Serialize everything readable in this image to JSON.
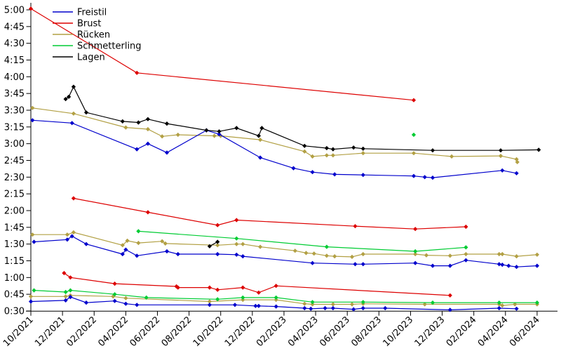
{
  "chart_data": {
    "type": "line",
    "title": "",
    "xlabel": "",
    "ylabel": "",
    "grid": false,
    "legend_position": "top-left",
    "marker": "diamond",
    "y_axis": {
      "unit": "min:sec",
      "range_seconds": [
        30,
        300
      ],
      "ticks": [
        {
          "s": 30,
          "label": "0:30"
        },
        {
          "s": 45,
          "label": "0:45"
        },
        {
          "s": 60,
          "label": "1:00"
        },
        {
          "s": 75,
          "label": "1:15"
        },
        {
          "s": 90,
          "label": "1:30"
        },
        {
          "s": 105,
          "label": "1:45"
        },
        {
          "s": 120,
          "label": "2:00"
        },
        {
          "s": 135,
          "label": "2:15"
        },
        {
          "s": 150,
          "label": "2:30"
        },
        {
          "s": 165,
          "label": "2:45"
        },
        {
          "s": 180,
          "label": "3:00"
        },
        {
          "s": 195,
          "label": "3:15"
        },
        {
          "s": 210,
          "label": "3:30"
        },
        {
          "s": 225,
          "label": "3:45"
        },
        {
          "s": 240,
          "label": "4:00"
        },
        {
          "s": 255,
          "label": "4:15"
        },
        {
          "s": 270,
          "label": "4:30"
        },
        {
          "s": 285,
          "label": "4:45"
        },
        {
          "s": 300,
          "label": "5:00"
        }
      ]
    },
    "x_axis": {
      "unit": "month/year",
      "range_months": [
        -0.3,
        33.3
      ],
      "ticks": [
        {
          "m": 0,
          "label": "10/2021"
        },
        {
          "m": 2,
          "label": "12/2021"
        },
        {
          "m": 4,
          "label": "02/2022"
        },
        {
          "m": 6,
          "label": "04/2022"
        },
        {
          "m": 8,
          "label": "06/2022"
        },
        {
          "m": 10,
          "label": "08/2022"
        },
        {
          "m": 12,
          "label": "10/2022"
        },
        {
          "m": 14,
          "label": "12/2022"
        },
        {
          "m": 16,
          "label": "02/2023"
        },
        {
          "m": 18,
          "label": "04/2023"
        },
        {
          "m": 20,
          "label": "06/2023"
        },
        {
          "m": 22,
          "label": "08/2023"
        },
        {
          "m": 24,
          "label": "10/2023"
        },
        {
          "m": 26,
          "label": "12/2023"
        },
        {
          "m": 28,
          "label": "02/2024"
        },
        {
          "m": 30,
          "label": "04/2024"
        },
        {
          "m": 32,
          "label": "06/2024"
        }
      ]
    },
    "legend": [
      {
        "label": "Freistil",
        "color": "#0000cc"
      },
      {
        "label": "Brust",
        "color": "#dd0000"
      },
      {
        "label": "Rücken",
        "color": "#b2a044"
      },
      {
        "label": "Schmetterling",
        "color": "#00cc33"
      },
      {
        "label": "Lagen",
        "color": "#000000"
      }
    ],
    "series": [
      {
        "id": "ruecken-long",
        "stroke": "Rücken",
        "band": "long",
        "color": "#b2a044",
        "points": [
          [
            0.1,
            212
          ],
          [
            2.7,
            207
          ],
          [
            6.0,
            194.5
          ],
          [
            7.4,
            193
          ],
          [
            8.3,
            186.5
          ],
          [
            9.3,
            188
          ],
          [
            11.6,
            187
          ],
          [
            12.0,
            187
          ],
          [
            14.5,
            183.5
          ],
          [
            17.3,
            173
          ],
          [
            17.8,
            168.5
          ],
          [
            18.7,
            169.5
          ],
          [
            19.1,
            169.5
          ],
          [
            21.0,
            171.5
          ],
          [
            24.2,
            171.5
          ],
          [
            26.6,
            168.5
          ],
          [
            29.7,
            169
          ],
          [
            30.7,
            166
          ],
          [
            30.75,
            163.5
          ]
        ]
      },
      {
        "id": "ruecken-mid",
        "stroke": "Rücken",
        "band": "mid",
        "color": "#b2a044",
        "points": [
          [
            0.1,
            98.5
          ],
          [
            2.3,
            98.5
          ],
          [
            2.7,
            100.5
          ],
          [
            5.8,
            89
          ],
          [
            6.1,
            93
          ],
          [
            6.8,
            91
          ],
          [
            8.3,
            92.5
          ],
          [
            8.5,
            90.5
          ],
          [
            11.8,
            89
          ],
          [
            13.0,
            90
          ],
          [
            13.4,
            90
          ],
          [
            14.5,
            87.5
          ],
          [
            16.7,
            84
          ],
          [
            17.4,
            82
          ],
          [
            17.9,
            81.5
          ],
          [
            18.7,
            79.5
          ],
          [
            19.2,
            79
          ],
          [
            20.3,
            78.5
          ],
          [
            21.0,
            81
          ],
          [
            24.3,
            81
          ],
          [
            25.0,
            80
          ],
          [
            26.5,
            79.5
          ],
          [
            27.5,
            81
          ],
          [
            29.6,
            81
          ],
          [
            29.8,
            81
          ],
          [
            30.7,
            79
          ],
          [
            32.0,
            80.5
          ]
        ]
      },
      {
        "id": "ruecken-short",
        "stroke": "Rücken",
        "band": "short",
        "color": "#b2a044",
        "points": [
          [
            0.0,
            43
          ],
          [
            2.2,
            43
          ],
          [
            2.5,
            44
          ],
          [
            5.2,
            43
          ],
          [
            6.0,
            41.5
          ],
          [
            11.3,
            38.5
          ],
          [
            13.4,
            40
          ],
          [
            15.5,
            40
          ],
          [
            17.3,
            36.5
          ],
          [
            17.8,
            36
          ],
          [
            19.1,
            36
          ],
          [
            20.3,
            36
          ],
          [
            21.0,
            36.5
          ],
          [
            24.9,
            36
          ],
          [
            29.6,
            36
          ],
          [
            29.8,
            35
          ],
          [
            30.6,
            36
          ],
          [
            32.0,
            36
          ]
        ]
      },
      {
        "id": "schmetterling-long",
        "stroke": "Schmetterling",
        "band": "long",
        "color": "#00cc33",
        "points": [
          [
            24.2,
            188
          ]
        ]
      },
      {
        "id": "schmetterling-mid",
        "stroke": "Schmetterling",
        "band": "mid",
        "color": "#00cc33",
        "points": [
          [
            6.8,
            101.5
          ],
          [
            13.0,
            95
          ],
          [
            18.7,
            87.5
          ],
          [
            24.3,
            83.5
          ],
          [
            27.5,
            87
          ]
        ]
      },
      {
        "id": "schmetterling-short",
        "stroke": "Schmetterling",
        "band": "short",
        "color": "#00cc33",
        "points": [
          [
            0.2,
            48.5
          ],
          [
            2.2,
            47
          ],
          [
            2.5,
            48.5
          ],
          [
            5.3,
            45
          ],
          [
            7.3,
            42
          ],
          [
            11.8,
            40.5
          ],
          [
            13.4,
            42
          ],
          [
            15.5,
            42
          ],
          [
            17.8,
            38
          ],
          [
            21.0,
            38
          ],
          [
            25.4,
            37.5
          ],
          [
            29.6,
            37.5
          ],
          [
            32.0,
            37.5
          ]
        ]
      },
      {
        "id": "brust-long",
        "stroke": "Brust",
        "band": "long",
        "color": "#dd0000",
        "points": [
          [
            0.0,
            301
          ],
          [
            6.7,
            243.5
          ],
          [
            24.2,
            219
          ]
        ]
      },
      {
        "id": "brust-mid",
        "stroke": "Brust",
        "band": "mid",
        "color": "#dd0000",
        "points": [
          [
            2.7,
            131
          ],
          [
            7.4,
            118.5
          ],
          [
            11.8,
            107
          ],
          [
            13.0,
            111.5
          ],
          [
            20.5,
            106
          ],
          [
            24.3,
            103.5
          ],
          [
            27.5,
            105.5
          ]
        ]
      },
      {
        "id": "brust-short",
        "stroke": "Brust",
        "band": "short",
        "color": "#dd0000",
        "points": [
          [
            2.1,
            64
          ],
          [
            2.5,
            60
          ],
          [
            5.3,
            54.5
          ],
          [
            9.2,
            52
          ],
          [
            9.3,
            51
          ],
          [
            11.3,
            51
          ],
          [
            11.8,
            49
          ],
          [
            13.4,
            51
          ],
          [
            14.4,
            46.5
          ],
          [
            15.5,
            52.5
          ],
          [
            26.5,
            44
          ]
        ]
      },
      {
        "id": "freistil-long",
        "stroke": "Freistil",
        "band": "long",
        "color": "#0000cc",
        "points": [
          [
            0.1,
            201
          ],
          [
            2.6,
            198.5
          ],
          [
            6.7,
            175
          ],
          [
            7.4,
            180
          ],
          [
            8.6,
            172
          ],
          [
            11.1,
            192
          ],
          [
            11.9,
            188.5
          ],
          [
            14.5,
            167.5
          ],
          [
            16.6,
            158
          ],
          [
            17.8,
            154.5
          ],
          [
            19.2,
            152.5
          ],
          [
            21.0,
            152
          ],
          [
            24.2,
            151
          ],
          [
            24.9,
            150
          ],
          [
            25.4,
            149.5
          ],
          [
            29.8,
            156
          ],
          [
            30.7,
            153.5
          ]
        ]
      },
      {
        "id": "freistil-mid",
        "stroke": "Freistil",
        "band": "mid",
        "color": "#0000cc",
        "points": [
          [
            0.2,
            92
          ],
          [
            2.3,
            94
          ],
          [
            2.6,
            97
          ],
          [
            3.5,
            90
          ],
          [
            5.8,
            81
          ],
          [
            6.0,
            85
          ],
          [
            6.7,
            79.5
          ],
          [
            8.6,
            83.5
          ],
          [
            9.3,
            81
          ],
          [
            11.8,
            81
          ],
          [
            13.0,
            80.5
          ],
          [
            13.4,
            79
          ],
          [
            17.8,
            73
          ],
          [
            20.5,
            72
          ],
          [
            21.0,
            72
          ],
          [
            24.3,
            73
          ],
          [
            25.4,
            70.5
          ],
          [
            26.5,
            70.5
          ],
          [
            27.5,
            75.5
          ],
          [
            29.6,
            72
          ],
          [
            29.8,
            71.5
          ],
          [
            30.2,
            70.5
          ],
          [
            30.7,
            69.5
          ],
          [
            32.0,
            70.5
          ]
        ]
      },
      {
        "id": "freistil-short",
        "stroke": "Freistil",
        "band": "short",
        "color": "#0000cc",
        "points": [
          [
            0.0,
            38.5
          ],
          [
            2.2,
            39.5
          ],
          [
            2.5,
            42.5
          ],
          [
            3.5,
            37.5
          ],
          [
            5.3,
            39
          ],
          [
            6.0,
            36.5
          ],
          [
            6.7,
            35.5
          ],
          [
            11.3,
            35.5
          ],
          [
            12.9,
            35.5
          ],
          [
            14.2,
            34.5
          ],
          [
            14.4,
            34.5
          ],
          [
            15.5,
            34
          ],
          [
            17.3,
            32.5
          ],
          [
            17.7,
            32
          ],
          [
            18.6,
            32.5
          ],
          [
            19.1,
            32.5
          ],
          [
            20.4,
            31.5
          ],
          [
            21.0,
            32.5
          ],
          [
            22.4,
            32.5
          ],
          [
            26.5,
            31
          ],
          [
            29.6,
            32.5
          ],
          [
            30.7,
            32
          ]
        ]
      },
      {
        "id": "lagen-long",
        "stroke": "Lagen",
        "band": "long",
        "color": "#000000",
        "points": [
          [
            2.2,
            220
          ],
          [
            2.4,
            222
          ],
          [
            2.7,
            231
          ],
          [
            3.5,
            208
          ],
          [
            5.8,
            200
          ],
          [
            6.8,
            199
          ],
          [
            7.4,
            202
          ],
          [
            8.6,
            198
          ],
          [
            11.1,
            192
          ],
          [
            11.9,
            191
          ],
          [
            13.0,
            194
          ],
          [
            14.4,
            187
          ],
          [
            14.6,
            194
          ],
          [
            17.3,
            178
          ],
          [
            18.7,
            176
          ],
          [
            19.1,
            175
          ],
          [
            20.4,
            176.5
          ],
          [
            21.0,
            175.5
          ],
          [
            25.4,
            174
          ],
          [
            29.7,
            174
          ],
          [
            32.1,
            174.5
          ]
        ]
      },
      {
        "id": "lagen-mid",
        "stroke": "Lagen",
        "band": "mid",
        "color": "#000000",
        "points": [
          [
            11.3,
            88
          ],
          [
            11.8,
            92
          ]
        ]
      }
    ]
  }
}
